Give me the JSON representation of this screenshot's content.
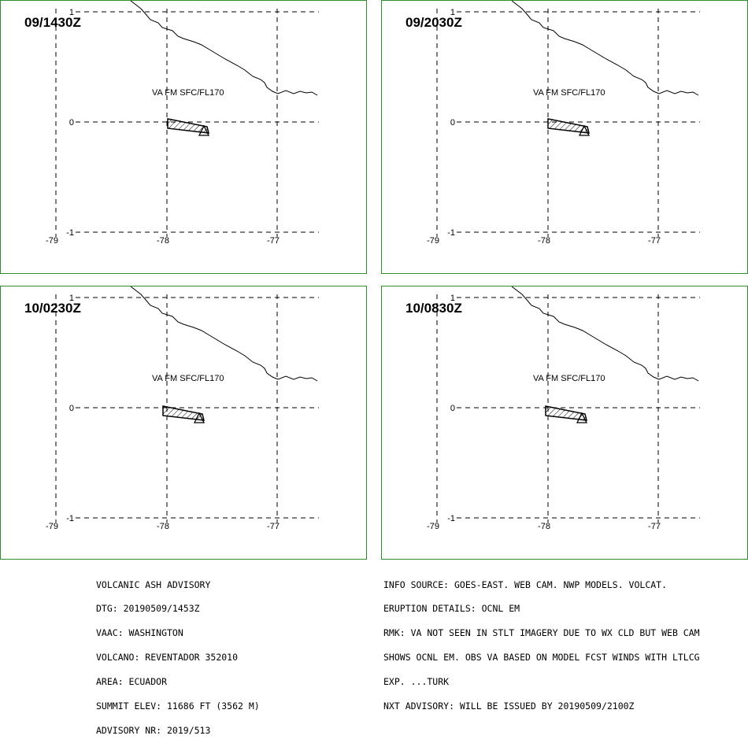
{
  "panels": [
    {
      "time": "09/1430Z",
      "va_label": "VA FM SFC/FL170"
    },
    {
      "time": "09/2030Z",
      "va_label": "VA FM SFC/FL170"
    },
    {
      "time": "10/0230Z",
      "va_label": "VA FM SFC/FL170"
    },
    {
      "time": "10/0830Z",
      "va_label": "VA FM SFC/FL170"
    }
  ],
  "map": {
    "lat_labels": [
      "1",
      "0",
      "-1"
    ],
    "lon_labels": [
      "-79",
      "-78",
      "-77"
    ],
    "colors": {
      "frame": "#2e8b2e",
      "lines": "#000000",
      "background": "#ffffff"
    }
  },
  "advisory_left": [
    "VOLCANIC ASH ADVISORY",
    "DTG: 20190509/1453Z",
    "VAAC: WASHINGTON",
    "VOLCANO: REVENTADOR 352010",
    "AREA: ECUADOR",
    "SUMMIT ELEV: 11686 FT (3562 M)",
    "ADVISORY NR: 2019/513"
  ],
  "advisory_right": [
    "INFO SOURCE: GOES-EAST. WEB CAM. NWP MODELS. VOLCAT.",
    "ERUPTION DETAILS: OCNL EM",
    "RMK: VA NOT SEEN IN STLT IMAGERY DUE TO WX CLD BUT WEB CAM",
    "SHOWS OCNL EM. OBS VA BASED ON MODEL FCST WINDS WITH LTLCG",
    "EXP. ...TURK",
    "NXT ADVISORY: WILL BE ISSUED BY 20190509/2100Z"
  ]
}
